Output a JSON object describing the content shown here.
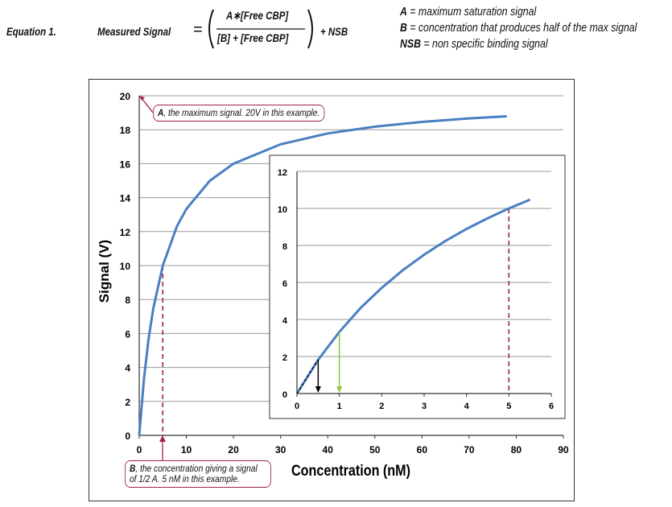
{
  "equation": {
    "label": "Equation 1.",
    "lhs": "Measured Signal",
    "equals": "=",
    "numerator": "A∗[Free CBP]",
    "denominator": "[B] + [Free CBP]",
    "plus_term": "+  NSB"
  },
  "definitions": [
    {
      "key": "A",
      "text": " = maximum saturation signal"
    },
    {
      "key": "B",
      "text": " = concentration that produces half of the max signal"
    },
    {
      "key": "NSB",
      "text": " = non specific binding signal"
    }
  ],
  "annotations": {
    "a_label": "A",
    "a_text": ", the maximum signal. 20V in this example.",
    "b_label": "B",
    "b_text": ", the concentration giving a signal of 1/2 A. 5 nM in this example."
  },
  "colors": {
    "curve": "#4a7fc1",
    "marker": "#a0214a",
    "arrow_green": "#8dc63f",
    "arrow_black": "#000000",
    "grid": "#999999"
  },
  "chart_data": [
    {
      "type": "line",
      "xlabel": "Concentration (nM)",
      "ylabel": "Signal (V)",
      "xlim": [
        0,
        90
      ],
      "ylim": [
        0,
        20
      ],
      "xticks": [
        0,
        10,
        20,
        30,
        40,
        50,
        60,
        70,
        80,
        90
      ],
      "yticks": [
        0,
        2,
        4,
        6,
        8,
        10,
        12,
        14,
        16,
        18,
        20
      ],
      "grid": "horizontal",
      "series": [
        {
          "x": [
            0,
            1,
            2,
            3,
            5,
            8,
            10,
            15,
            20,
            30,
            40,
            50,
            60,
            70,
            78
          ],
          "y": [
            0,
            3.33,
            5.71,
            7.5,
            10,
            12.31,
            13.33,
            15,
            16,
            17.14,
            17.78,
            18.18,
            18.46,
            18.67,
            18.79
          ]
        }
      ],
      "markers": [
        {
          "x": 5,
          "y": 10
        }
      ]
    },
    {
      "type": "line",
      "xlim": [
        0,
        6
      ],
      "ylim": [
        0,
        12
      ],
      "xticks": [
        0,
        1,
        2,
        3,
        4,
        5,
        6
      ],
      "yticks": [
        0,
        2,
        4,
        6,
        8,
        10,
        12
      ],
      "grid": "horizontal",
      "series": [
        {
          "x": [
            0,
            0.5,
            1,
            1.5,
            2,
            2.5,
            3,
            3.5,
            4,
            4.5,
            5,
            5.5
          ],
          "y": [
            0,
            1.82,
            3.33,
            4.62,
            5.71,
            6.67,
            7.5,
            8.24,
            8.89,
            9.47,
            10,
            10.48
          ]
        }
      ],
      "markers": [
        {
          "x": 5,
          "y": 10
        }
      ],
      "arrows": [
        {
          "x": 0.5,
          "y": 1.82,
          "color": "black"
        },
        {
          "x": 1,
          "y": 3.33,
          "color": "green"
        }
      ]
    }
  ]
}
